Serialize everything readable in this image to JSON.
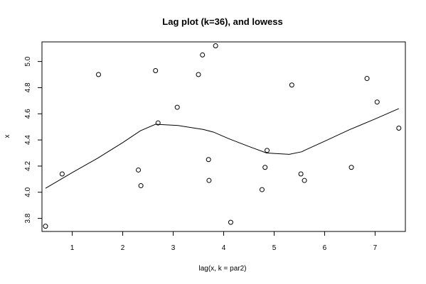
{
  "chart_data": {
    "type": "scatter",
    "title": "Lag plot (k=36), and lowess",
    "xlabel": "lag(x, k = par2)",
    "ylabel": "x",
    "xlim": [
      0.4,
      7.6
    ],
    "ylim": [
      3.7,
      5.15
    ],
    "x_ticks": [
      1,
      2,
      3,
      4,
      5,
      6,
      7
    ],
    "y_ticks": [
      3.8,
      4.0,
      4.2,
      4.4,
      4.6,
      4.8,
      5.0
    ],
    "grid": false,
    "points": [
      {
        "x": 0.47,
        "y": 3.74
      },
      {
        "x": 0.8,
        "y": 4.14
      },
      {
        "x": 1.52,
        "y": 4.9
      },
      {
        "x": 2.31,
        "y": 4.17
      },
      {
        "x": 2.36,
        "y": 4.05
      },
      {
        "x": 2.65,
        "y": 4.93
      },
      {
        "x": 2.7,
        "y": 4.53
      },
      {
        "x": 3.08,
        "y": 4.65
      },
      {
        "x": 3.5,
        "y": 4.9
      },
      {
        "x": 3.58,
        "y": 5.05
      },
      {
        "x": 3.7,
        "y": 4.25
      },
      {
        "x": 3.71,
        "y": 4.09
      },
      {
        "x": 3.84,
        "y": 5.12
      },
      {
        "x": 4.14,
        "y": 3.77
      },
      {
        "x": 4.76,
        "y": 4.02
      },
      {
        "x": 4.82,
        "y": 4.19
      },
      {
        "x": 4.86,
        "y": 4.32
      },
      {
        "x": 5.35,
        "y": 4.82
      },
      {
        "x": 5.53,
        "y": 4.14
      },
      {
        "x": 5.6,
        "y": 4.09
      },
      {
        "x": 6.53,
        "y": 4.19
      },
      {
        "x": 6.84,
        "y": 4.87
      },
      {
        "x": 7.04,
        "y": 4.69
      },
      {
        "x": 7.47,
        "y": 4.49
      }
    ],
    "lowess": [
      {
        "x": 0.47,
        "y": 4.03
      },
      {
        "x": 1.0,
        "y": 4.15
      },
      {
        "x": 1.5,
        "y": 4.26
      },
      {
        "x": 2.0,
        "y": 4.38
      },
      {
        "x": 2.35,
        "y": 4.47
      },
      {
        "x": 2.65,
        "y": 4.52
      },
      {
        "x": 3.1,
        "y": 4.51
      },
      {
        "x": 3.6,
        "y": 4.48
      },
      {
        "x": 3.8,
        "y": 4.46
      },
      {
        "x": 4.1,
        "y": 4.41
      },
      {
        "x": 4.5,
        "y": 4.35
      },
      {
        "x": 4.85,
        "y": 4.3
      },
      {
        "x": 5.3,
        "y": 4.29
      },
      {
        "x": 5.55,
        "y": 4.31
      },
      {
        "x": 5.6,
        "y": 4.32
      },
      {
        "x": 6.0,
        "y": 4.39
      },
      {
        "x": 6.5,
        "y": 4.48
      },
      {
        "x": 7.0,
        "y": 4.56
      },
      {
        "x": 7.47,
        "y": 4.64
      }
    ]
  }
}
